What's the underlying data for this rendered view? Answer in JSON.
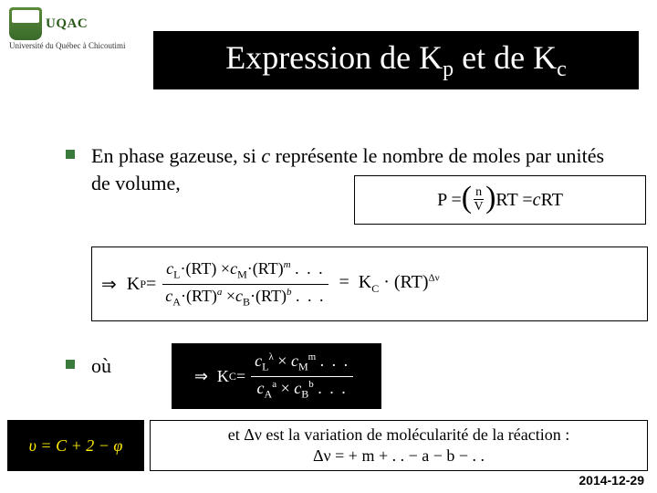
{
  "logo": {
    "text": "UQAC",
    "sub": "Université du Québec\nà Chicoutimi"
  },
  "title": {
    "pre": "Expression de K",
    "sub1": "p",
    "mid": " et de K",
    "sub2": "c"
  },
  "para1": "En phase gazeuse, si c représente le nombre de moles par unités de volume,",
  "eq1": {
    "lhs": "P  = ",
    "lparen": "(",
    "n": "n",
    "V": "V",
    "rparen": ")",
    "rt1": " RT  =  ",
    "c": "c",
    "rt2": " RT"
  },
  "eq2": {
    "imp": "⇒  K",
    "psub": "P",
    "eq": "  =  ",
    "num": "cL·(RT) ×cM·(RT)m . . .",
    "den": "cA·(RT)a ×cB·(RT)b . . .",
    "rhs1": "  =  K",
    "csub": "C",
    "rhs2": " · (RT)",
    "dnu": "Δν"
  },
  "ou": "où",
  "eq3": {
    "imp": "⇒  K",
    "csub": "C",
    "eq": " = ",
    "num": "cL × cM . . .",
    "den": "cA × cB . . ."
  },
  "eq4": {
    "l1a": "et Δν est la variation de molécularité de la réaction :",
    "l2": "Δν  =   + m + . .  − a − b − . ."
  },
  "corner": "υ = C + 2 − φ",
  "date": "2014-12-29",
  "colors": {
    "green": "#3a7a3a",
    "yellow": "#ffea00",
    "black": "#000000",
    "white": "#ffffff"
  }
}
